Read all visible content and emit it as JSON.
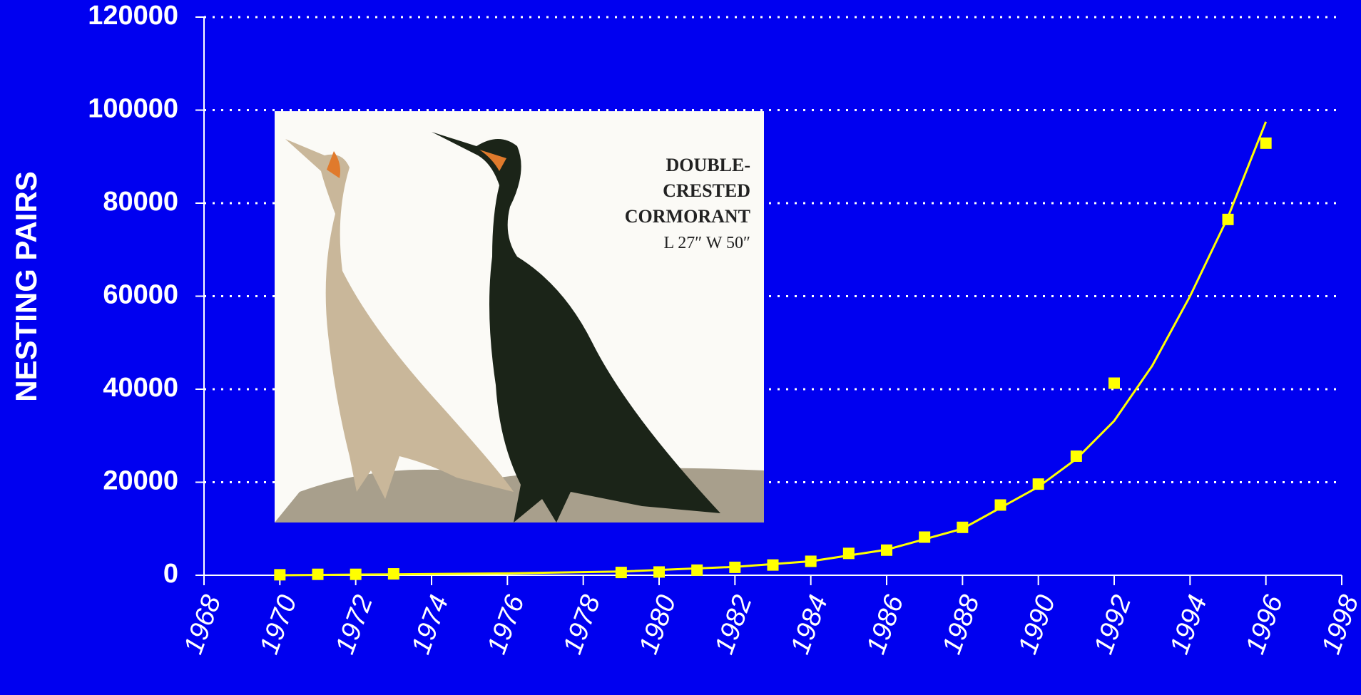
{
  "chart_data": {
    "type": "scatter",
    "ylabel": "NESTING PAIRS",
    "series": [
      {
        "color": "#ffff00",
        "marker": "square",
        "x": [
          1970,
          1971,
          1972,
          1973,
          1979,
          1980,
          1981,
          1982,
          1983,
          1984,
          1985,
          1986,
          1987,
          1988,
          1989,
          1990,
          1991,
          1992,
          1995,
          1996
        ],
        "values": [
          100,
          200,
          200,
          300,
          600,
          700,
          1100,
          1700,
          2200,
          3000,
          4700,
          5400,
          8200,
          10300,
          15100,
          19600,
          25600,
          41300,
          76500,
          92900
        ]
      },
      {
        "color": "#ffff00",
        "marker": "line",
        "x": [
          1970,
          1973,
          1976,
          1979,
          1982,
          1984,
          1986,
          1988,
          1990,
          1991,
          1992,
          1993,
          1994,
          1995,
          1996
        ],
        "values": [
          0,
          200,
          400,
          800,
          1800,
          3000,
          5500,
          10000,
          19000,
          25000,
          33200,
          45000,
          60000,
          77000,
          97500
        ]
      }
    ],
    "xlim": [
      1968,
      1998
    ],
    "xticks": [
      1968,
      1970,
      1972,
      1974,
      1976,
      1978,
      1980,
      1982,
      1984,
      1986,
      1988,
      1990,
      1992,
      1994,
      1996,
      1998
    ],
    "ylim": [
      0,
      120000
    ],
    "yticks": [
      0,
      20000,
      40000,
      60000,
      80000,
      100000,
      120000
    ],
    "grid": true,
    "inset": {
      "lines": [
        "DOUBLE-",
        "CRESTED",
        "CORMORANT",
        "L 27″ W 50″"
      ]
    }
  }
}
